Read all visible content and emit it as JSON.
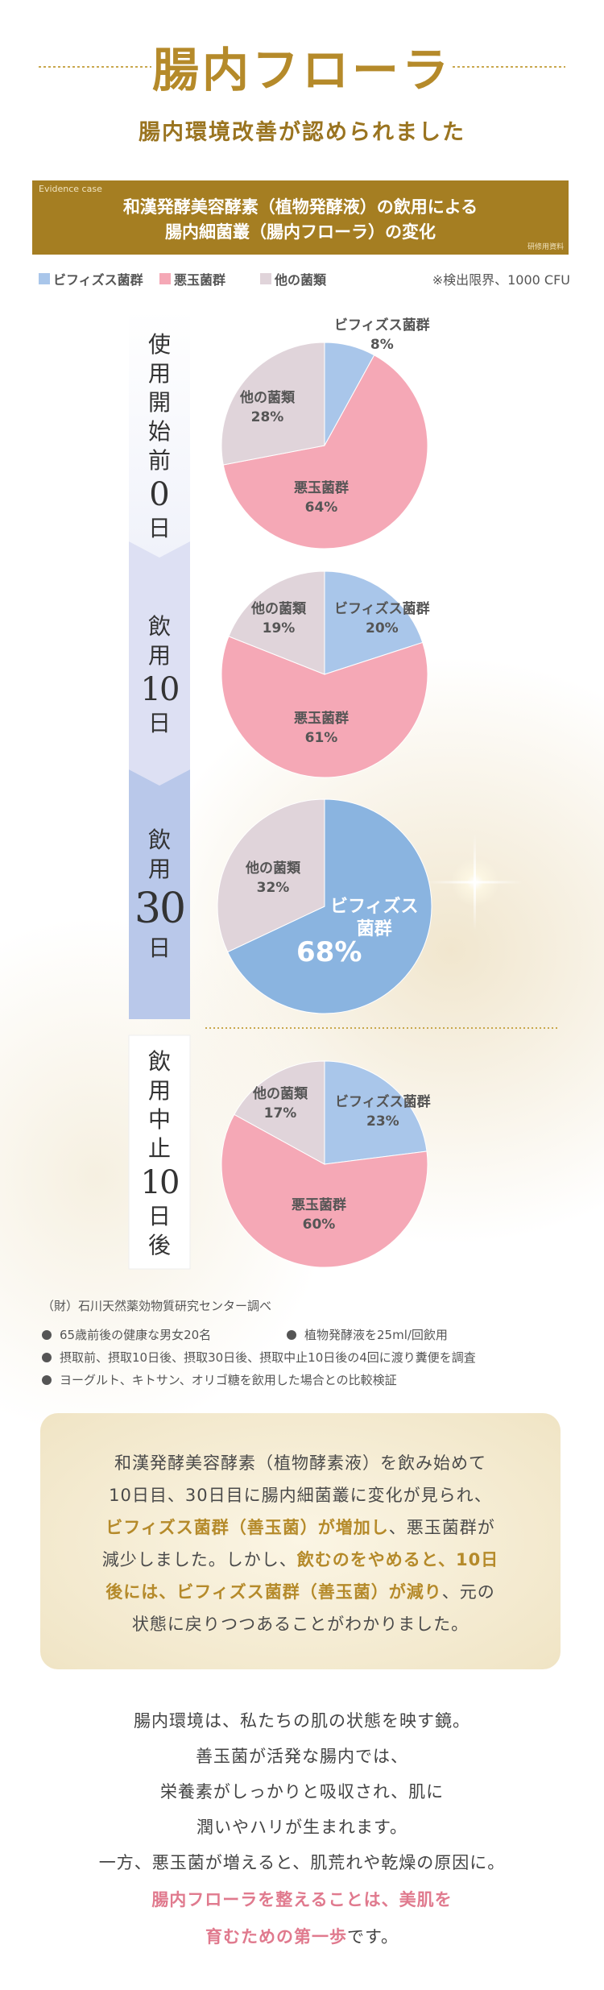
{
  "header": {
    "title": "腸内フローラ",
    "subtitle": "腸内環境改善が認められました"
  },
  "evidence": {
    "tag": "Evidence case",
    "title_line1": "和漢発酵美容酵素（植物発酵液）の飲用による",
    "title_line2": "腸内細菌叢（腸内フローラ）の変化",
    "note": "研修用資料"
  },
  "legend": {
    "items": [
      {
        "label": "ビフィズス菌群",
        "color": "#a9c6ea"
      },
      {
        "label": "悪玉菌群",
        "color": "#f5a8b6"
      },
      {
        "label": "他の菌類",
        "color": "#e0d4da"
      }
    ],
    "note": "※検出限界、1000 CFU"
  },
  "colors": {
    "bifidus": "#a9c6ea",
    "bifidus_highlight": "#8ab4e0",
    "bad": "#f5a8b6",
    "other": "#e0d4da",
    "gold": "#b58a2a"
  },
  "chart_data": [
    {
      "type": "pie",
      "phase": [
        "使",
        "用",
        "開",
        "始",
        "前",
        "0",
        "日"
      ],
      "slices": [
        {
          "name": "ビフィズス菌群",
          "value": 8,
          "label": "8%"
        },
        {
          "name": "悪玉菌群",
          "value": 64,
          "label": "64%"
        },
        {
          "name": "他の菌類",
          "value": 28,
          "label": "28%"
        }
      ]
    },
    {
      "type": "pie",
      "phase": [
        "飲",
        "用",
        "10",
        "日"
      ],
      "slices": [
        {
          "name": "ビフィズス菌群",
          "value": 20,
          "label": "20%"
        },
        {
          "name": "悪玉菌群",
          "value": 61,
          "label": "61%"
        },
        {
          "name": "他の菌類",
          "value": 19,
          "label": "19%"
        }
      ]
    },
    {
      "type": "pie",
      "phase": [
        "飲",
        "用",
        "30",
        "日"
      ],
      "slices": [
        {
          "name": "ビフィズス",
          "name2": "菌群",
          "value": 68,
          "label": "68%"
        },
        {
          "name": "他の菌類",
          "value": 32,
          "label": "32%"
        }
      ]
    },
    {
      "type": "pie",
      "phase": [
        "飲",
        "用",
        "中",
        "止",
        "10",
        "日",
        "後"
      ],
      "slices": [
        {
          "name": "ビフィズス菌群",
          "value": 23,
          "label": "23%"
        },
        {
          "name": "悪玉菌群",
          "value": 60,
          "label": "60%"
        },
        {
          "name": "他の菌類",
          "value": 17,
          "label": "17%"
        }
      ]
    }
  ],
  "source": "（財）石川天然薬効物質研究センター調べ",
  "bullets": [
    "65歳前後の健康な男女20名",
    "植物発酵液を25ml/回飲用",
    "摂取前、摂取10日後、摂取30日後、摂取中止10日後の4回に渡り糞便を調査",
    "ヨーグルト、キトサン、オリゴ糖を飲用した場合との比較検証"
  ],
  "summary": {
    "l1": "和漢発酵美容酵素（植物酵素液）を飲み始めて",
    "l2": "10日目、30日目に腸内細菌叢に変化が見られ、",
    "l3a": "ビフィズス菌群（善玉菌）が増加し",
    "l3b": "、悪玉菌群が",
    "l4a": "減少しました。しかし、",
    "l4b": "飲むのをやめると、10日",
    "l5a": "後には、ビフィズス菌群（善玉菌）が減り",
    "l5b": "、元の",
    "l6": "状態に戻りつつあることがわかりました。"
  },
  "outro": {
    "l1": "腸内環境は、私たちの肌の状態を映す鏡。",
    "l2": "善玉菌が活発な腸内では、",
    "l3": "栄養素がしっかりと吸収され、肌に",
    "l4": "潤いやハリが生まれます。",
    "l5": "一方、悪玉菌が増えると、肌荒れや乾燥の原因に。",
    "l6": "腸内フローラを整えることは、美肌を",
    "l7a": "育むための第一歩",
    "l7b": "です。"
  }
}
